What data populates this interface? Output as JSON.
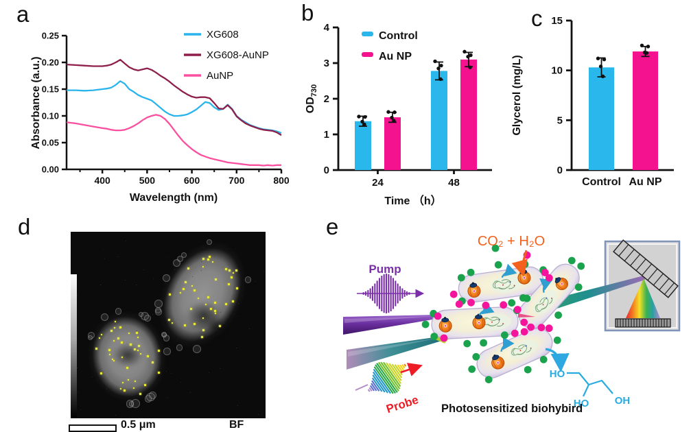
{
  "panels": {
    "a": {
      "label": "a"
    },
    "b": {
      "label": "b"
    },
    "c": {
      "label": "c"
    },
    "d": {
      "label": "d",
      "scale_bar_label": "0.5 μm",
      "corner_label": "BF"
    },
    "e": {
      "label": "e",
      "pump_label": "Pump",
      "probe_label": "Probe",
      "reaction_label": "CO₂ + H₂O",
      "caption": "Photosensitized biohybird",
      "molecule": {
        "top_left": "HO",
        "bottom_left": "HO",
        "bottom_right": "OH"
      },
      "colors": {
        "pump": "#7b2fa8",
        "probe_text": "#ee1c24",
        "reaction": "#f4611e",
        "molecule": "#29abe2",
        "green_dot": "#1aa34c",
        "magenta_dot": "#f5149c",
        "beam_teal": "#1f8f8f",
        "beam_purple": "#9b6bb5"
      },
      "probe_pulse_colors": [
        "#b48cc8",
        "#5a6fd0",
        "#2196c9",
        "#27a844",
        "#70c027",
        "#c8d420",
        "#f5d011",
        "#f58211"
      ]
    }
  },
  "chart_data": [
    {
      "panel": "a",
      "type": "line",
      "xlabel": "Wavelength (nm)",
      "ylabel": "Absorbance (a.u.)",
      "xlim": [
        320,
        800
      ],
      "ylim": [
        0,
        0.25
      ],
      "xticks": [
        400,
        500,
        600,
        700,
        800
      ],
      "xticks_minor": [
        350,
        450,
        550,
        650,
        750
      ],
      "yticks": [
        0.0,
        0.05,
        0.1,
        0.15,
        0.2,
        0.25
      ],
      "legend_position": "top-right",
      "x": [
        320,
        340,
        360,
        380,
        400,
        410,
        420,
        430,
        440,
        450,
        460,
        470,
        480,
        490,
        500,
        510,
        520,
        530,
        540,
        550,
        560,
        570,
        580,
        590,
        600,
        610,
        620,
        630,
        640,
        650,
        660,
        670,
        680,
        690,
        700,
        710,
        720,
        730,
        740,
        750,
        760,
        770,
        780,
        790,
        800
      ],
      "series": [
        {
          "name": "XG608",
          "color": "#29b4ec",
          "y": [
            0.148,
            0.148,
            0.147,
            0.148,
            0.15,
            0.151,
            0.153,
            0.158,
            0.165,
            0.16,
            0.15,
            0.145,
            0.139,
            0.135,
            0.132,
            0.129,
            0.122,
            0.115,
            0.108,
            0.103,
            0.1,
            0.1,
            0.101,
            0.103,
            0.107,
            0.112,
            0.119,
            0.126,
            0.124,
            0.116,
            0.111,
            0.113,
            0.121,
            0.113,
            0.1,
            0.093,
            0.088,
            0.083,
            0.08,
            0.077,
            0.075,
            0.074,
            0.073,
            0.071,
            0.068
          ]
        },
        {
          "name": "XG608-AuNP",
          "color": "#8e1f4b",
          "y": [
            0.196,
            0.195,
            0.194,
            0.193,
            0.193,
            0.194,
            0.196,
            0.2,
            0.205,
            0.198,
            0.191,
            0.187,
            0.185,
            0.187,
            0.189,
            0.186,
            0.181,
            0.175,
            0.17,
            0.164,
            0.157,
            0.151,
            0.145,
            0.14,
            0.136,
            0.134,
            0.135,
            0.135,
            0.133,
            0.124,
            0.114,
            0.113,
            0.12,
            0.112,
            0.099,
            0.092,
            0.086,
            0.082,
            0.079,
            0.076,
            0.074,
            0.073,
            0.072,
            0.069,
            0.064
          ]
        },
        {
          "name": "AuNP",
          "color": "#fb4f9f",
          "y": [
            0.088,
            0.086,
            0.083,
            0.08,
            0.077,
            0.076,
            0.074,
            0.073,
            0.073,
            0.074,
            0.077,
            0.081,
            0.086,
            0.092,
            0.097,
            0.1,
            0.102,
            0.1,
            0.094,
            0.085,
            0.074,
            0.063,
            0.053,
            0.045,
            0.038,
            0.032,
            0.027,
            0.024,
            0.021,
            0.019,
            0.017,
            0.015,
            0.013,
            0.012,
            0.011,
            0.01,
            0.009,
            0.008,
            0.008,
            0.008,
            0.007,
            0.008,
            0.007,
            0.008,
            0.008
          ]
        }
      ]
    },
    {
      "panel": "b",
      "type": "bar",
      "xlabel": "Time （h）",
      "ylabel": "OD",
      "ylabel_sub": "730",
      "categories": [
        "24",
        "48"
      ],
      "ylim": [
        0,
        4
      ],
      "yticks": [
        0,
        1,
        2,
        3,
        4
      ],
      "series": [
        {
          "name": "Control",
          "color": "#29b7ec",
          "values": [
            1.37,
            2.78
          ],
          "errors": [
            0.14,
            0.25
          ],
          "points": [
            [
              1.5,
              1.49,
              1.36,
              1.28
            ],
            [
              3.05,
              2.93,
              2.85,
              2.55
            ]
          ]
        },
        {
          "name": "Au NP",
          "color": "#f5128e",
          "values": [
            1.48,
            3.1
          ],
          "errors": [
            0.14,
            0.2
          ],
          "points": [
            [
              1.63,
              1.62,
              1.47,
              1.38
            ],
            [
              3.32,
              3.22,
              3.18,
              2.88
            ]
          ]
        }
      ]
    },
    {
      "panel": "c",
      "type": "bar",
      "ylabel": "Glycerol (mg/L)",
      "categories": [
        "Control",
        "Au NP"
      ],
      "ylim": [
        0,
        15
      ],
      "yticks": [
        0,
        5,
        10,
        15
      ],
      "bars": [
        {
          "label": "Control",
          "color": "#29b7ec",
          "value": 10.3,
          "error": 0.95,
          "points": [
            11.2,
            11.1,
            10.4,
            9.4
          ]
        },
        {
          "label": "Au NP",
          "color": "#f5128e",
          "value": 11.9,
          "error": 0.5,
          "points": [
            12.5,
            12.4,
            11.8,
            11.75
          ]
        }
      ]
    }
  ]
}
